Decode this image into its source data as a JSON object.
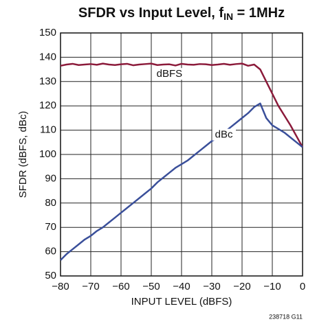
{
  "chart_data": {
    "type": "line",
    "title": [
      "SFDR vs Input Level, f",
      "IN",
      " = 1MHz"
    ],
    "x_label": "INPUT LEVEL (dBFS)",
    "y_label": "SFDR (dBFS, dBc)",
    "footnote": "238718 G11",
    "x": [
      -80,
      -78,
      -76,
      -74,
      -72,
      -70,
      -68,
      -66,
      -64,
      -62,
      -60,
      -58,
      -56,
      -54,
      -52,
      -50,
      -48,
      -46,
      -44,
      -42,
      -40,
      -38,
      -36,
      -34,
      -32,
      -30,
      -28,
      -26,
      -24,
      -22,
      -20,
      -18,
      -16,
      -14,
      -12,
      -10,
      -8,
      -6,
      -4,
      -2,
      0
    ],
    "series": [
      {
        "name": "dBFS",
        "color": "#8b1a3a",
        "values": [
          136.5,
          137,
          137.3,
          136.8,
          137,
          137.2,
          136.9,
          137.4,
          137,
          136.8,
          137.1,
          137.3,
          136.7,
          137,
          137.2,
          137.4,
          136.8,
          137,
          137.1,
          136.6,
          137.3,
          137,
          136.9,
          137.2,
          137.1,
          136.8,
          137,
          137.3,
          136.9,
          137.2,
          137.4,
          136.5,
          137,
          135,
          130,
          125,
          120,
          116,
          112,
          107.5,
          103
        ]
      },
      {
        "name": "dBc",
        "color": "#3a4f9a",
        "values": [
          56.5,
          59,
          61,
          63,
          65,
          66.5,
          68.5,
          70,
          72,
          74,
          76,
          78,
          80,
          82,
          84,
          86,
          88.5,
          90.5,
          92.5,
          94.5,
          96,
          97.5,
          99.5,
          101.5,
          103.5,
          105.5,
          107,
          109,
          111,
          113,
          115,
          117,
          119.5,
          121,
          115,
          112,
          110.5,
          109,
          107,
          105,
          103
        ]
      }
    ],
    "xlim": [
      -80,
      0
    ],
    "xticks": [
      {
        "value": -80,
        "label": "−80"
      },
      {
        "value": -70,
        "label": "−70"
      },
      {
        "value": -60,
        "label": "−60"
      },
      {
        "value": -50,
        "label": "−50"
      },
      {
        "value": -40,
        "label": "−40"
      },
      {
        "value": -30,
        "label": "−30"
      },
      {
        "value": -20,
        "label": "−20"
      },
      {
        "value": -10,
        "label": "−10"
      },
      0
    ],
    "ylim": [
      50,
      150
    ],
    "yticks": [
      50,
      60,
      70,
      80,
      90,
      100,
      110,
      120,
      130,
      140,
      150
    ],
    "grid": true
  }
}
